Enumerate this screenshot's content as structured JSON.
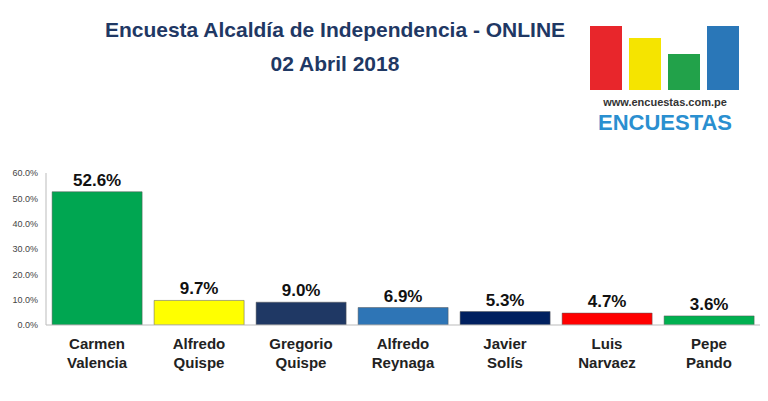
{
  "chart_data": {
    "type": "bar",
    "title": "Encuesta Alcaldía de Independencia - ONLINE",
    "subtitle": "02 Abril 2018",
    "annotations": [
      "www.encuestas.com.pe",
      "ENCUESTAS"
    ],
    "categories": [
      "Carmen Valencia",
      "Alfredo Quispe",
      "Gregorio Quispe",
      "Alfredo Reynaga",
      "Javier Solís",
      "Luis Narvaez",
      "Pepe Pando"
    ],
    "values": [
      52.6,
      9.7,
      9.0,
      6.9,
      5.3,
      4.7,
      3.6
    ],
    "value_labels": [
      "52.6%",
      "9.7%",
      "9.0%",
      "6.9%",
      "5.3%",
      "4.7%",
      "3.6%"
    ],
    "colors": [
      "#00a651",
      "#ffff00",
      "#1f3864",
      "#2e75b6",
      "#002060",
      "#ff0000",
      "#00b050"
    ],
    "ylim": [
      0,
      60
    ],
    "yticks": [
      {
        "value": 0,
        "label": "0.0%"
      },
      {
        "value": 10,
        "label": "10.0%"
      },
      {
        "value": 20,
        "label": "20.0%"
      },
      {
        "value": 30,
        "label": "30.0%"
      },
      {
        "value": 40,
        "label": "40.0%"
      },
      {
        "value": 50,
        "label": "50.0%"
      },
      {
        "value": 60,
        "label": "60.0%"
      }
    ],
    "grid": false,
    "data_labels": true
  }
}
